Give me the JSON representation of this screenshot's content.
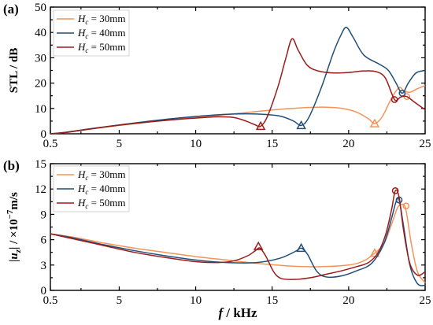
{
  "colors": {
    "h30": "#F4935A",
    "h40": "#1F4E79",
    "h50": "#9B1B1B"
  },
  "chart_data": [
    {
      "type": "line",
      "panel_label": "(a)",
      "ylabel": "STL / dB",
      "xlabel": "",
      "xlim": [
        0.5,
        25
      ],
      "ylim": [
        0,
        50
      ],
      "xticks": [
        "0.5",
        "5",
        "10",
        "15",
        "20",
        "25"
      ],
      "yticks": [
        "0",
        "10",
        "20",
        "30",
        "40",
        "50"
      ],
      "grid": false,
      "legend_position": "top-left",
      "series": [
        {
          "name_var": "H",
          "name_sub": "c",
          "name_rest": " = 30mm",
          "color_key": "h30",
          "x": [
            0.5,
            1.5,
            3,
            5,
            7,
            9,
            11,
            13,
            14.5,
            16,
            17.5,
            18.5,
            19.5,
            20.5,
            21.3,
            21.7,
            22.2,
            22.8,
            23.3,
            23.6,
            24,
            24.5,
            25
          ],
          "y": [
            0,
            0.6,
            1.8,
            3.3,
            4.7,
            5.9,
            7.0,
            8.2,
            9.1,
            9.9,
            10.4,
            10.5,
            10.1,
            8.6,
            5.9,
            4.0,
            6.8,
            14.0,
            18.2,
            17.0,
            16.4,
            17.8,
            19.0
          ],
          "triangle": [
            21.7,
            4.0
          ],
          "circle": [
            23.8,
            14.7
          ]
        },
        {
          "name_var": "H",
          "name_sub": "c",
          "name_rest": " = 40mm",
          "color_key": "h40",
          "x": [
            0.5,
            1.5,
            3,
            5,
            7,
            9,
            11,
            12.5,
            14,
            15.5,
            16.4,
            16.9,
            17.4,
            18.2,
            19,
            19.5,
            19.85,
            20.3,
            21,
            22,
            22.6,
            23.1,
            23.5,
            23.9,
            24.4,
            25
          ],
          "y": [
            0,
            0.6,
            1.9,
            3.5,
            5.0,
            6.3,
            7.3,
            7.8,
            7.8,
            7.0,
            5.0,
            3.3,
            6.5,
            18.0,
            32.0,
            39.0,
            42.0,
            38.0,
            31.0,
            27.5,
            25.0,
            20.0,
            16.0,
            20.0,
            24.0,
            25.0
          ],
          "triangle": [
            16.9,
            3.3
          ],
          "circle": [
            23.5,
            16.0
          ]
        },
        {
          "name_var": "H",
          "name_sub": "c",
          "name_rest": " = 50mm",
          "color_key": "h50",
          "x": [
            0.5,
            1.5,
            3,
            5,
            7,
            9,
            10.5,
            11.5,
            12.5,
            13.3,
            13.9,
            14.25,
            14.7,
            15.4,
            15.9,
            16.3,
            16.7,
            17.3,
            18,
            19,
            20,
            21,
            21.8,
            22.4,
            23,
            23.4,
            23.8,
            24.3,
            25
          ],
          "y": [
            0,
            0.5,
            1.8,
            3.4,
            4.7,
            5.8,
            6.4,
            6.7,
            6.4,
            5.0,
            3.5,
            3.0,
            7.0,
            19.0,
            30.0,
            37.5,
            33.0,
            27.0,
            24.8,
            24.0,
            24.2,
            24.8,
            24.5,
            22.0,
            13.5,
            14.5,
            14.7,
            12.5,
            9.5
          ],
          "triangle": [
            14.25,
            3.0
          ],
          "circle": [
            23.0,
            13.5
          ]
        }
      ]
    },
    {
      "type": "line",
      "panel_label": "(b)",
      "ylabel_pre": "|",
      "ylabel_var": "u",
      "ylabel_sub": "z",
      "ylabel_mid": "| / ×10",
      "ylabel_sup": "−7",
      "ylabel_unit": "m/s",
      "xlabel_var": "f",
      "xlabel_rest": " / kHz",
      "xlim": [
        0.5,
        25
      ],
      "ylim": [
        0,
        15
      ],
      "xticks": [
        "0.5",
        "5",
        "10",
        "15",
        "20",
        "25"
      ],
      "yticks": [
        "0",
        "3",
        "6",
        "9",
        "12",
        "15"
      ],
      "grid": false,
      "legend_position": "top-left",
      "series": [
        {
          "name_var": "H",
          "name_sub": "c",
          "name_rest": " = 30mm",
          "color_key": "h30",
          "x": [
            0.5,
            2,
            4,
            6,
            8,
            10,
            12,
            14,
            16,
            18,
            20,
            21,
            21.7,
            22.3,
            22.8,
            23.2,
            23.5,
            23.75,
            24.1,
            24.5,
            25
          ],
          "y": [
            6.7,
            6.3,
            5.6,
            5.0,
            4.5,
            4.0,
            3.6,
            3.2,
            2.9,
            2.8,
            3.0,
            3.5,
            4.4,
            5.5,
            7.8,
            9.8,
            10.2,
            9.5,
            5.5,
            2.2,
            0.9
          ],
          "triangle": [
            21.7,
            4.4
          ],
          "circle": [
            23.75,
            10.0
          ]
        },
        {
          "name_var": "H",
          "name_sub": "c",
          "name_rest": " = 40mm",
          "color_key": "h40",
          "x": [
            0.5,
            2,
            4,
            6,
            8,
            10,
            12,
            14,
            15.5,
            16.5,
            16.9,
            17.3,
            17.9,
            18.5,
            19.5,
            20.5,
            21.5,
            22.3,
            22.8,
            23.1,
            23.3,
            23.6,
            24,
            24.5,
            25
          ],
          "y": [
            6.7,
            6.2,
            5.4,
            4.7,
            4.1,
            3.6,
            3.3,
            3.3,
            3.8,
            4.6,
            5.0,
            4.3,
            2.3,
            1.6,
            1.7,
            2.3,
            3.2,
            5.5,
            8.5,
            10.5,
            10.7,
            7.5,
            3.0,
            0.8,
            0.6
          ],
          "triangle": [
            16.9,
            5.0
          ],
          "circle": [
            23.3,
            10.7
          ]
        },
        {
          "name_var": "H",
          "name_sub": "c",
          "name_rest": " = 50mm",
          "color_key": "h50",
          "x": [
            0.5,
            2,
            4,
            6,
            8,
            10,
            11.5,
            12.5,
            13.4,
            13.9,
            14.2,
            14.6,
            15.1,
            15.6,
            16.5,
            17.5,
            18.5,
            19.5,
            20.5,
            21.3,
            21.9,
            22.4,
            22.8,
            23.05,
            23.3,
            23.6,
            24,
            24.5,
            25
          ],
          "y": [
            6.7,
            6.1,
            5.3,
            4.5,
            3.9,
            3.4,
            3.3,
            3.5,
            4.1,
            4.7,
            5.0,
            4.0,
            2.2,
            1.4,
            1.3,
            1.5,
            1.9,
            2.3,
            2.8,
            3.3,
            4.4,
            6.5,
            9.5,
            11.8,
            11.0,
            7.0,
            3.2,
            1.8,
            2.2
          ],
          "triangle": [
            14.1,
            5.2
          ],
          "circle": [
            23.05,
            11.8
          ]
        }
      ]
    }
  ]
}
